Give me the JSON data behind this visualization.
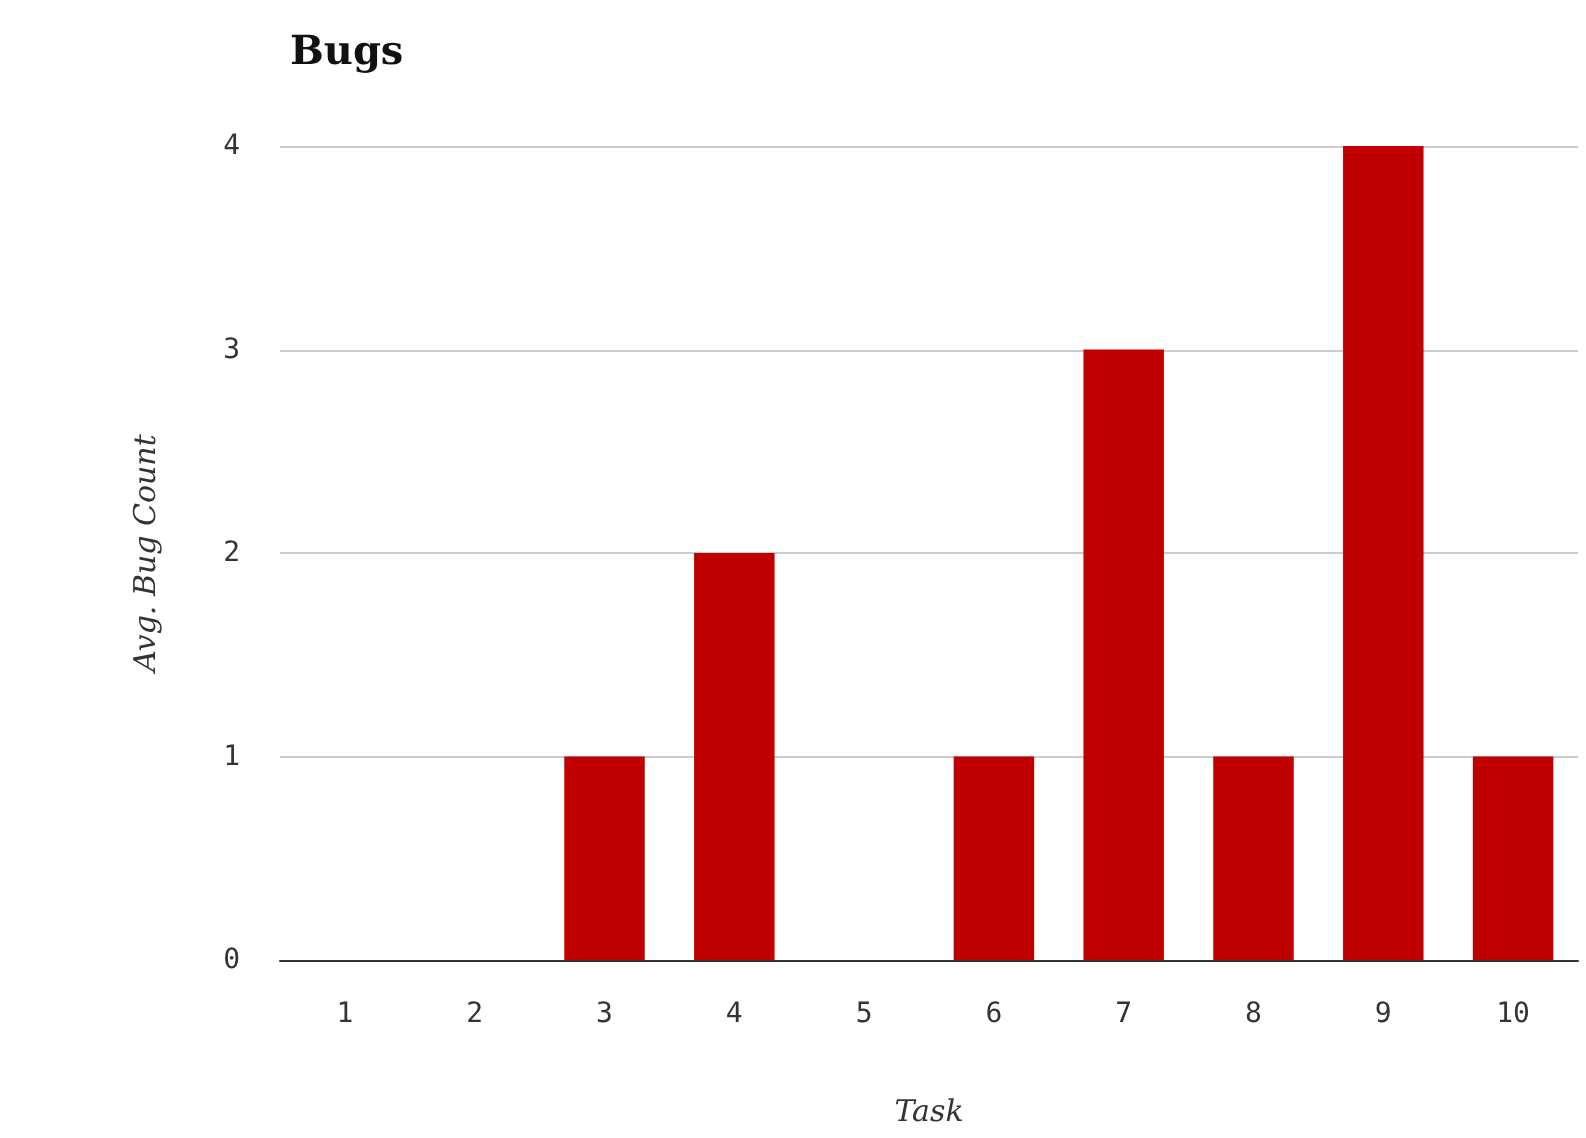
{
  "chart_data": {
    "type": "bar",
    "title": "Bugs",
    "xlabel": "Task",
    "ylabel": "Avg. Bug Count",
    "categories": [
      "1",
      "2",
      "3",
      "4",
      "5",
      "6",
      "7",
      "8",
      "9",
      "10"
    ],
    "values": [
      0,
      0,
      1,
      2,
      0,
      1,
      3,
      1,
      4,
      1
    ],
    "color": "#c00000",
    "ylim": [
      0,
      4
    ],
    "yticks": [
      0,
      1,
      2,
      3,
      4
    ],
    "grid": "y"
  }
}
